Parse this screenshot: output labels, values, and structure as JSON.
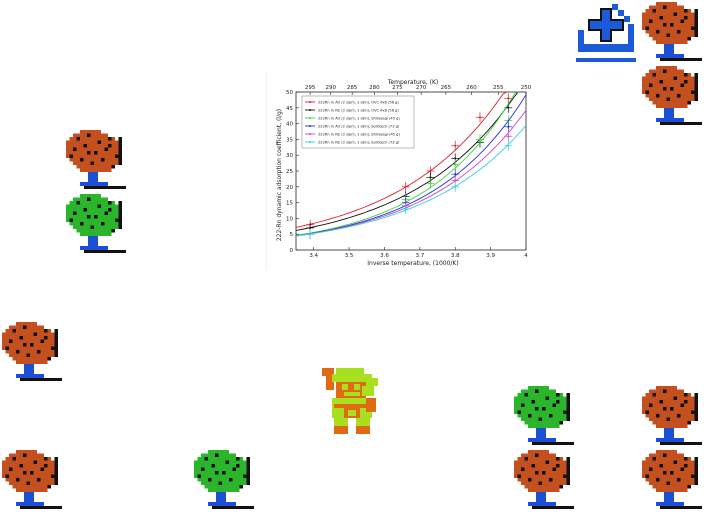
{
  "scene": {
    "colors": {
      "tree_orange": "#c4501f",
      "tree_green": "#2bb52b",
      "trunk_blue": "#1b4fd8",
      "add_blue": "#1b5ad8",
      "hero_green": "#a8e020",
      "hero_orange": "#e06a12"
    },
    "trees": [
      {
        "kind": "orange"
      },
      {
        "kind": "orange"
      },
      {
        "kind": "orange"
      },
      {
        "kind": "green"
      },
      {
        "kind": "orange"
      },
      {
        "kind": "orange"
      },
      {
        "kind": "green"
      },
      {
        "kind": "orange"
      },
      {
        "kind": "orange"
      },
      {
        "kind": "green"
      },
      {
        "kind": "orange"
      },
      {
        "kind": "orange"
      }
    ],
    "icons": {
      "add": "add-to-inventory-icon",
      "hero": "hero-sprite"
    }
  },
  "chart_data": {
    "type": "line",
    "xlabel": "Inverse temperature, (1000/K)",
    "ylabel": "222-Rn dynamic adsorption coefficient, (l/g)",
    "top_axis_label": "Temperature, (K)",
    "xlim": [
      3.35,
      4.0
    ],
    "ylim": [
      0,
      50
    ],
    "xticks": [
      "3.4",
      "3.5",
      "3.6",
      "3.7",
      "3.8",
      "3.9",
      "4"
    ],
    "yticks": [
      "0",
      "5",
      "10",
      "15",
      "20",
      "25",
      "30",
      "35",
      "40",
      "45",
      "50"
    ],
    "top_ticks": [
      "295",
      "290",
      "285",
      "280",
      "275",
      "270",
      "265",
      "260",
      "255",
      "250"
    ],
    "legend_position": "top-left",
    "series": [
      {
        "name": "222Rn in Air (2 slpm, 1 atm), OVC 4x8 (56 g)",
        "color": "#e0202a",
        "x": [
          3.39,
          3.66,
          3.73,
          3.8,
          3.87,
          3.95
        ],
        "y": [
          8,
          20,
          25,
          33,
          42,
          48
        ]
      },
      {
        "name": "222Rn in N2 (2 slpm, 1 atm), OVC 4x8 (56 g)",
        "color": "#111111",
        "x": [
          3.39,
          3.66,
          3.73,
          3.8,
          3.87,
          3.95
        ],
        "y": [
          7,
          17,
          23,
          29,
          34,
          45
        ]
      },
      {
        "name": "222Rn in Air (2 slpm, 1 atm), Shirasagi (45 g)",
        "color": "#40d040",
        "x": [
          3.39,
          3.66,
          3.73,
          3.8,
          3.87,
          3.95
        ],
        "y": [
          5,
          16,
          21,
          27,
          35,
          41
        ]
      },
      {
        "name": "222Rn in Air (2 slpm, 1 atm), Sorbtech (73 g)",
        "color": "#2030d8",
        "x": [
          3.39,
          3.66,
          3.8,
          3.95
        ],
        "y": [
          5,
          15,
          24,
          39
        ]
      },
      {
        "name": "222Rn in N2 (2 slpm, 1 atm), Shirasagi (45 g)",
        "color": "#d040d0",
        "x": [
          3.39,
          3.66,
          3.8,
          3.95
        ],
        "y": [
          5,
          14,
          22,
          36
        ]
      },
      {
        "name": "222Rn in N2 (2 slpm, 1 atm), Sorbtech (73 g)",
        "color": "#30d0e0",
        "x": [
          3.39,
          3.66,
          3.8,
          3.95
        ],
        "y": [
          5,
          13,
          20,
          33
        ]
      }
    ]
  }
}
